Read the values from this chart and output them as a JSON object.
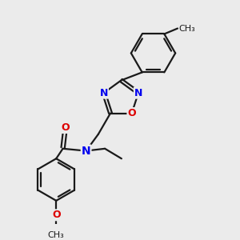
{
  "bg_color": "#ebebeb",
  "bond_color": "#1a1a1a",
  "bond_width": 1.6,
  "atom_colors": {
    "N": "#0000ee",
    "O": "#dd0000",
    "C": "#1a1a1a"
  },
  "font_size_atom": 9,
  "font_size_small": 8
}
